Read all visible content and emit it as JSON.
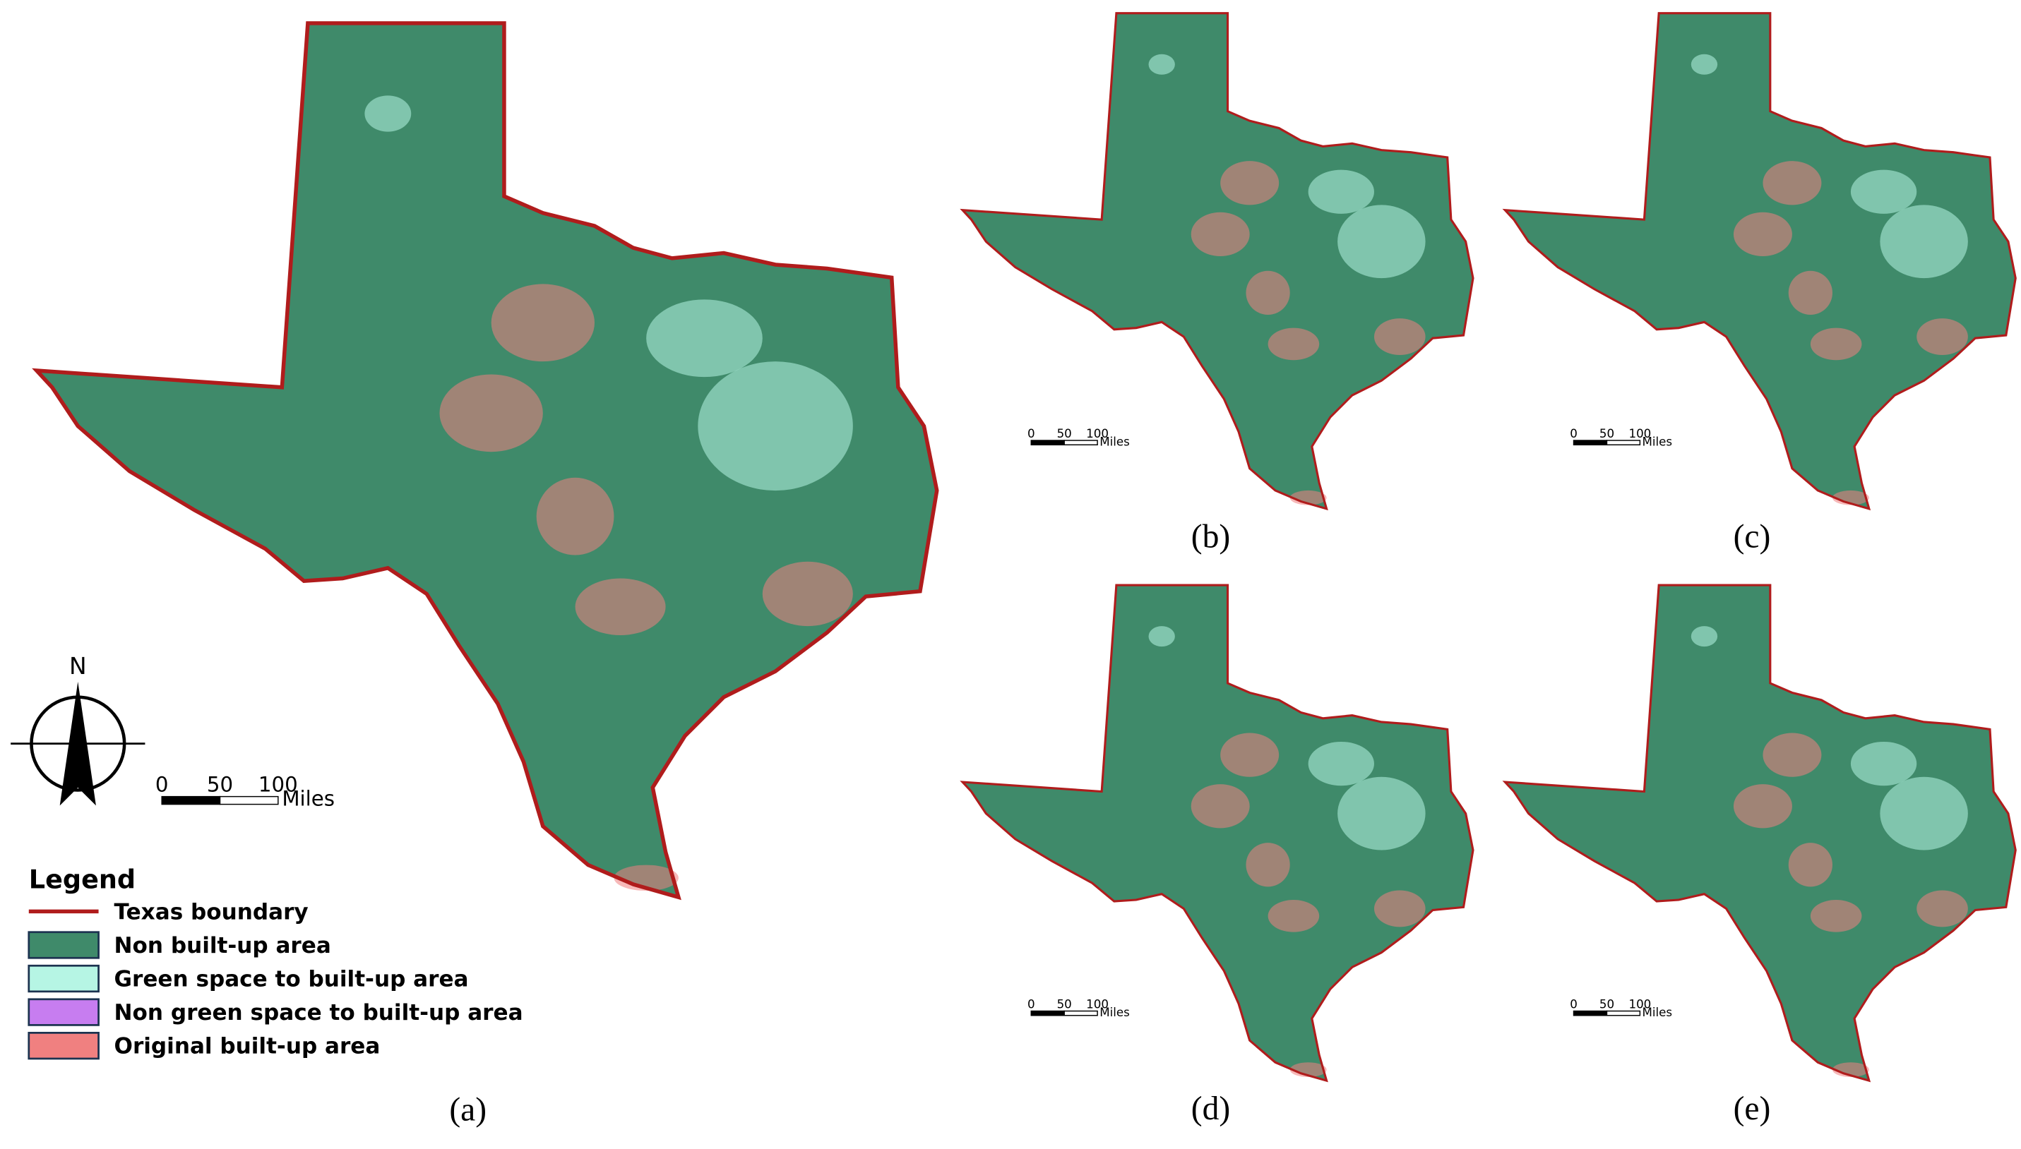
{
  "panels": [
    {
      "label": "(a)",
      "scale": {
        "ticks": [
          0,
          50,
          100
        ],
        "unit": "Miles"
      }
    },
    {
      "label": "(b)",
      "scale": {
        "ticks": [
          0,
          50,
          100
        ],
        "unit": "Miles"
      }
    },
    {
      "label": "(c)",
      "scale": {
        "ticks": [
          0,
          50,
          100
        ],
        "unit": "Miles"
      }
    },
    {
      "label": "(d)",
      "scale": {
        "ticks": [
          0,
          50,
          100
        ],
        "unit": "Miles"
      }
    },
    {
      "label": "(e)",
      "scale": {
        "ticks": [
          0,
          50,
          100
        ],
        "unit": "Miles"
      }
    }
  ],
  "north_arrow": {
    "label": "N"
  },
  "legend": {
    "title": "Legend",
    "items": [
      {
        "label": "Texas boundary",
        "color": "#b01c1c"
      },
      {
        "label": "Non built-up area",
        "color": "#3f8a6a"
      },
      {
        "label": "Green space to built-up area",
        "color": "#b6f5e4"
      },
      {
        "label": "Non green space to built-up area",
        "color": "#c77df0"
      },
      {
        "label": "Original built-up area",
        "color": "#f08080"
      }
    ]
  }
}
